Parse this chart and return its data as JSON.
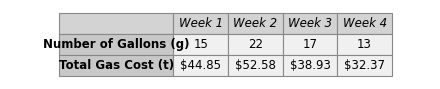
{
  "col_headers": [
    "Week 1",
    "Week 2",
    "Week 3",
    "Week 4"
  ],
  "row1_label": "Number of Gallons (g)",
  "row1_values": [
    "15",
    "22",
    "17",
    "13"
  ],
  "row2_label": "Total Gas Cost (t)",
  "row2_values": [
    "$44.85",
    "$52.58",
    "$38.93",
    "$32.37"
  ],
  "header_bg": "#d3d3d3",
  "data_bg": "#f0f0f0",
  "label_bg": "#c8c8c8",
  "row2_bg": "#e8e8e8",
  "border_color": "#888888",
  "text_color": "#000000",
  "font_size": 8.5,
  "fig_width": 4.4,
  "fig_height": 0.89,
  "dpi": 100,
  "outer_bg": "#ffffff"
}
